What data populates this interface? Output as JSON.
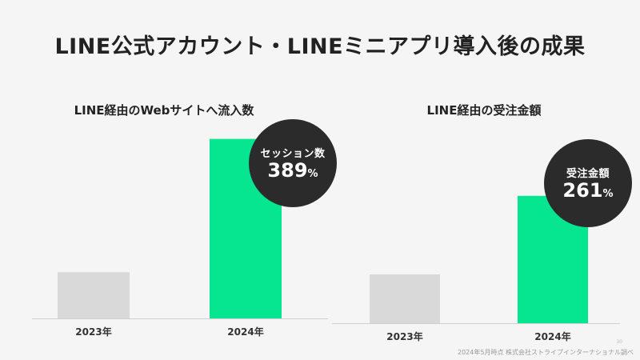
{
  "title": "LINE公式アカウント・LINEミニアプリ導入後の成果",
  "colors": {
    "bar_2023": "#d9d9d9",
    "bar_2024": "#06e58f",
    "bubble": "#2b2b2b",
    "axis": "#cfcfcf"
  },
  "chart_data": [
    {
      "type": "bar",
      "title": "LINE経由のWebサイトへ流入数",
      "categories": [
        "2023年",
        "2024年"
      ],
      "values": [
        100,
        389
      ],
      "ylim": [
        0,
        430
      ],
      "grid": false,
      "callout": {
        "label": "セッション数",
        "value": "389",
        "unit": "%"
      }
    },
    {
      "type": "bar",
      "title": "LINE経由の受注金額",
      "categories": [
        "2023年",
        "2024年"
      ],
      "values": [
        100,
        261
      ],
      "ylim": [
        0,
        400
      ],
      "grid": false,
      "callout": {
        "label": "受注金額",
        "value": "261",
        "unit": "%"
      }
    }
  ],
  "footnote": "2024年5月時点 株式会社ストライプインターナショナル調べ",
  "page_number": "30"
}
